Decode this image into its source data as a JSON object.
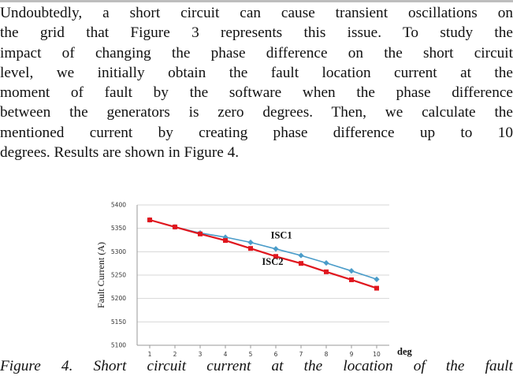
{
  "paragraph_lines": [
    "Undoubtedly, a short circuit can cause transient oscillations on",
    "the grid that Figure 3 represents this issue. To study the",
    "impact of changing the phase difference on the short circuit",
    "level, we initially obtain the fault location current at the",
    "moment of fault by the software when the phase difference",
    "between the generators is zero degrees. Then, we calculate the",
    "mentioned current by creating phase difference up to 10",
    "degrees. Results are shown in Figure 4."
  ],
  "caption_partial": "Figure 4. Short circuit current at the location of the fault",
  "chart_data": {
    "type": "line",
    "title": "",
    "xlabel": "deg",
    "ylabel": "Fault Current (A)",
    "x": [
      1,
      2,
      3,
      4,
      5,
      6,
      7,
      8,
      9,
      10
    ],
    "ylim": [
      5100,
      5400
    ],
    "yticks": [
      5100,
      5150,
      5200,
      5250,
      5300,
      5350,
      5400
    ],
    "grid": true,
    "legend": "none",
    "series": [
      {
        "name": "ISC1",
        "color": "#4a9cc9",
        "marker": "diamond",
        "values": [
          5368,
          5353,
          5340,
          5331,
          5320,
          5306,
          5292,
          5276,
          5259,
          5241
        ]
      },
      {
        "name": "ISC2",
        "color": "#e0161e",
        "marker": "square",
        "values": [
          5368,
          5353,
          5338,
          5324,
          5307,
          5290,
          5275,
          5257,
          5240,
          5222
        ]
      }
    ]
  }
}
